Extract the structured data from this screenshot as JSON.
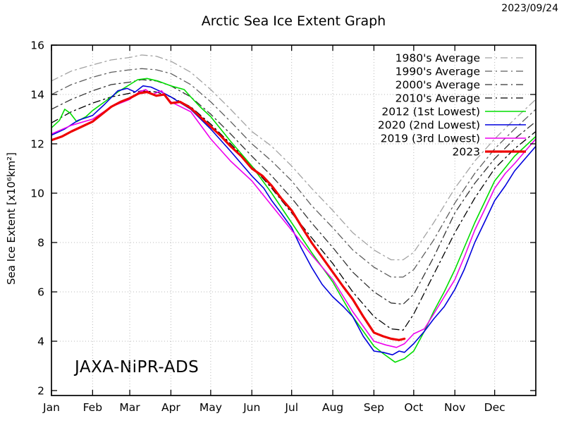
{
  "page": {
    "date_stamp": "2023/09/24",
    "watermark": "JAXA-NiPR-ADS"
  },
  "chart_data": {
    "type": "line",
    "title": "Arctic Sea Ice Extent Graph",
    "xlabel": "",
    "ylabel": "Sea Ice Extent [x10⁶km²]",
    "x_unit": "day_of_year",
    "xlim": [
      0,
      365
    ],
    "ylim": [
      2,
      16
    ],
    "grid": "dotted",
    "legend_position": "top-right-inside",
    "x_ticks": {
      "labels": [
        "Jan",
        "Feb",
        "Mar",
        "Apr",
        "May",
        "Jun",
        "Jul",
        "Aug",
        "Sep",
        "Oct",
        "Nov",
        "Dec"
      ],
      "days": [
        0,
        31,
        59,
        90,
        120,
        151,
        181,
        212,
        243,
        273,
        304,
        334
      ]
    },
    "y_ticks": [
      2,
      4,
      6,
      8,
      10,
      12,
      14,
      16
    ],
    "series": [
      {
        "name": "1980's Average",
        "color": "#a2a2a2",
        "style": "dash-dot",
        "width": 1.3,
        "points": [
          [
            0,
            14.55
          ],
          [
            15,
            14.95
          ],
          [
            31,
            15.2
          ],
          [
            45,
            15.4
          ],
          [
            59,
            15.5
          ],
          [
            68,
            15.6
          ],
          [
            79,
            15.55
          ],
          [
            90,
            15.35
          ],
          [
            105,
            14.9
          ],
          [
            120,
            14.2
          ],
          [
            135,
            13.4
          ],
          [
            151,
            12.5
          ],
          [
            166,
            11.9
          ],
          [
            181,
            11.1
          ],
          [
            196,
            10.2
          ],
          [
            212,
            9.3
          ],
          [
            227,
            8.4
          ],
          [
            243,
            7.7
          ],
          [
            256,
            7.3
          ],
          [
            265,
            7.3
          ],
          [
            273,
            7.6
          ],
          [
            288,
            8.8
          ],
          [
            304,
            10.2
          ],
          [
            319,
            11.3
          ],
          [
            334,
            12.2
          ],
          [
            349,
            13.0
          ],
          [
            365,
            13.8
          ]
        ]
      },
      {
        "name": "1990's Average",
        "color": "#5e5e5e",
        "style": "dash-dot",
        "width": 1.3,
        "points": [
          [
            0,
            14.0
          ],
          [
            15,
            14.4
          ],
          [
            31,
            14.7
          ],
          [
            45,
            14.9
          ],
          [
            59,
            15.0
          ],
          [
            68,
            15.05
          ],
          [
            79,
            15.0
          ],
          [
            90,
            14.85
          ],
          [
            105,
            14.4
          ],
          [
            120,
            13.7
          ],
          [
            135,
            12.9
          ],
          [
            151,
            12.0
          ],
          [
            166,
            11.3
          ],
          [
            181,
            10.5
          ],
          [
            196,
            9.5
          ],
          [
            212,
            8.6
          ],
          [
            227,
            7.7
          ],
          [
            243,
            7.0
          ],
          [
            256,
            6.6
          ],
          [
            265,
            6.6
          ],
          [
            273,
            6.9
          ],
          [
            288,
            8.1
          ],
          [
            304,
            9.6
          ],
          [
            319,
            10.8
          ],
          [
            334,
            11.8
          ],
          [
            349,
            12.6
          ],
          [
            365,
            13.4
          ]
        ]
      },
      {
        "name": "2000's Average",
        "color": "#333333",
        "style": "dash-dot",
        "width": 1.3,
        "points": [
          [
            0,
            13.4
          ],
          [
            15,
            13.8
          ],
          [
            31,
            14.15
          ],
          [
            45,
            14.4
          ],
          [
            59,
            14.5
          ],
          [
            68,
            14.6
          ],
          [
            79,
            14.55
          ],
          [
            90,
            14.35
          ],
          [
            105,
            13.9
          ],
          [
            120,
            13.2
          ],
          [
            135,
            12.4
          ],
          [
            151,
            11.5
          ],
          [
            166,
            10.7
          ],
          [
            181,
            9.8
          ],
          [
            196,
            8.8
          ],
          [
            212,
            7.8
          ],
          [
            227,
            6.8
          ],
          [
            243,
            6.0
          ],
          [
            256,
            5.55
          ],
          [
            265,
            5.5
          ],
          [
            273,
            5.9
          ],
          [
            288,
            7.4
          ],
          [
            304,
            9.2
          ],
          [
            319,
            10.4
          ],
          [
            334,
            11.4
          ],
          [
            349,
            12.2
          ],
          [
            365,
            12.9
          ]
        ]
      },
      {
        "name": "2010's Average",
        "color": "#000000",
        "style": "dash-dot",
        "width": 1.3,
        "points": [
          [
            0,
            12.85
          ],
          [
            15,
            13.3
          ],
          [
            31,
            13.65
          ],
          [
            45,
            13.9
          ],
          [
            59,
            14.05
          ],
          [
            68,
            14.15
          ],
          [
            79,
            14.1
          ],
          [
            90,
            13.9
          ],
          [
            105,
            13.5
          ],
          [
            120,
            12.8
          ],
          [
            135,
            12.0
          ],
          [
            151,
            11.1
          ],
          [
            166,
            10.2
          ],
          [
            181,
            9.2
          ],
          [
            196,
            8.2
          ],
          [
            212,
            7.15
          ],
          [
            227,
            6.0
          ],
          [
            243,
            5.0
          ],
          [
            256,
            4.5
          ],
          [
            265,
            4.45
          ],
          [
            273,
            5.1
          ],
          [
            288,
            6.7
          ],
          [
            304,
            8.4
          ],
          [
            319,
            9.8
          ],
          [
            334,
            11.0
          ],
          [
            349,
            11.8
          ],
          [
            365,
            12.5
          ]
        ]
      },
      {
        "name": "2012 (1st Lowest)",
        "color": "#00dd00",
        "style": "solid",
        "width": 1.6,
        "points": [
          [
            0,
            12.65
          ],
          [
            6,
            12.95
          ],
          [
            10,
            13.4
          ],
          [
            14,
            13.25
          ],
          [
            19,
            12.9
          ],
          [
            26,
            13.1
          ],
          [
            31,
            13.35
          ],
          [
            40,
            13.7
          ],
          [
            50,
            14.1
          ],
          [
            59,
            14.4
          ],
          [
            65,
            14.6
          ],
          [
            72,
            14.65
          ],
          [
            80,
            14.55
          ],
          [
            90,
            14.35
          ],
          [
            100,
            14.2
          ],
          [
            105,
            13.9
          ],
          [
            112,
            13.5
          ],
          [
            120,
            13.1
          ],
          [
            135,
            12.1
          ],
          [
            151,
            11.1
          ],
          [
            166,
            10.0
          ],
          [
            181,
            8.8
          ],
          [
            196,
            7.6
          ],
          [
            212,
            6.4
          ],
          [
            227,
            5.0
          ],
          [
            243,
            3.8
          ],
          [
            250,
            3.5
          ],
          [
            259,
            3.15
          ],
          [
            266,
            3.3
          ],
          [
            273,
            3.6
          ],
          [
            281,
            4.4
          ],
          [
            288,
            5.2
          ],
          [
            296,
            6.0
          ],
          [
            304,
            6.9
          ],
          [
            319,
            8.8
          ],
          [
            334,
            10.5
          ],
          [
            349,
            11.5
          ],
          [
            365,
            12.3
          ]
        ]
      },
      {
        "name": "2020 (2nd Lowest)",
        "color": "#0000dd",
        "style": "solid",
        "width": 1.6,
        "points": [
          [
            0,
            12.35
          ],
          [
            10,
            12.6
          ],
          [
            20,
            12.95
          ],
          [
            31,
            13.15
          ],
          [
            40,
            13.6
          ],
          [
            50,
            14.15
          ],
          [
            57,
            14.25
          ],
          [
            63,
            14.1
          ],
          [
            69,
            14.35
          ],
          [
            75,
            14.3
          ],
          [
            83,
            14.1
          ],
          [
            90,
            13.9
          ],
          [
            105,
            13.4
          ],
          [
            120,
            12.6
          ],
          [
            135,
            11.7
          ],
          [
            151,
            10.7
          ],
          [
            160,
            10.2
          ],
          [
            166,
            9.7
          ],
          [
            173,
            9.2
          ],
          [
            181,
            8.6
          ],
          [
            188,
            7.8
          ],
          [
            196,
            7.0
          ],
          [
            204,
            6.3
          ],
          [
            212,
            5.8
          ],
          [
            220,
            5.4
          ],
          [
            227,
            5.0
          ],
          [
            235,
            4.2
          ],
          [
            243,
            3.6
          ],
          [
            250,
            3.55
          ],
          [
            257,
            3.45
          ],
          [
            262,
            3.6
          ],
          [
            266,
            3.55
          ],
          [
            273,
            3.9
          ],
          [
            281,
            4.4
          ],
          [
            288,
            4.9
          ],
          [
            296,
            5.4
          ],
          [
            304,
            6.1
          ],
          [
            311,
            6.9
          ],
          [
            319,
            8.0
          ],
          [
            327,
            8.9
          ],
          [
            334,
            9.7
          ],
          [
            342,
            10.3
          ],
          [
            349,
            10.9
          ],
          [
            357,
            11.4
          ],
          [
            365,
            11.9
          ]
        ]
      },
      {
        "name": "2019 (3rd Lowest)",
        "color": "#ee00ee",
        "style": "solid",
        "width": 1.6,
        "points": [
          [
            0,
            12.4
          ],
          [
            15,
            12.75
          ],
          [
            31,
            13.0
          ],
          [
            45,
            13.5
          ],
          [
            59,
            13.8
          ],
          [
            66,
            14.1
          ],
          [
            71,
            14.2
          ],
          [
            76,
            14.0
          ],
          [
            83,
            14.15
          ],
          [
            90,
            13.7
          ],
          [
            105,
            13.3
          ],
          [
            120,
            12.2
          ],
          [
            135,
            11.3
          ],
          [
            151,
            10.5
          ],
          [
            166,
            9.5
          ],
          [
            181,
            8.5
          ],
          [
            196,
            7.5
          ],
          [
            212,
            6.5
          ],
          [
            227,
            5.2
          ],
          [
            243,
            4.0
          ],
          [
            252,
            3.85
          ],
          [
            260,
            3.75
          ],
          [
            266,
            3.9
          ],
          [
            273,
            4.3
          ],
          [
            281,
            4.5
          ],
          [
            288,
            5.1
          ],
          [
            296,
            5.8
          ],
          [
            304,
            6.5
          ],
          [
            311,
            7.4
          ],
          [
            319,
            8.5
          ],
          [
            327,
            9.4
          ],
          [
            334,
            10.2
          ],
          [
            342,
            10.8
          ],
          [
            349,
            11.2
          ],
          [
            357,
            11.7
          ],
          [
            365,
            12.2
          ]
        ]
      },
      {
        "name": "2023",
        "color": "#ee0000",
        "style": "solid",
        "width": 3.2,
        "points": [
          [
            0,
            12.15
          ],
          [
            8,
            12.3
          ],
          [
            15,
            12.5
          ],
          [
            23,
            12.7
          ],
          [
            31,
            12.9
          ],
          [
            38,
            13.2
          ],
          [
            45,
            13.5
          ],
          [
            52,
            13.7
          ],
          [
            59,
            13.85
          ],
          [
            66,
            14.05
          ],
          [
            72,
            14.1
          ],
          [
            79,
            13.95
          ],
          [
            85,
            14.0
          ],
          [
            90,
            13.65
          ],
          [
            97,
            13.7
          ],
          [
            105,
            13.45
          ],
          [
            112,
            13.1
          ],
          [
            120,
            12.7
          ],
          [
            128,
            12.3
          ],
          [
            135,
            11.9
          ],
          [
            143,
            11.5
          ],
          [
            151,
            11.0
          ],
          [
            159,
            10.7
          ],
          [
            166,
            10.3
          ],
          [
            173,
            9.8
          ],
          [
            181,
            9.3
          ],
          [
            189,
            8.6
          ],
          [
            196,
            8.0
          ],
          [
            204,
            7.4
          ],
          [
            212,
            6.8
          ],
          [
            220,
            6.2
          ],
          [
            227,
            5.7
          ],
          [
            235,
            5.0
          ],
          [
            243,
            4.35
          ],
          [
            250,
            4.2
          ],
          [
            256,
            4.1
          ],
          [
            262,
            4.05
          ],
          [
            266,
            4.1
          ]
        ]
      }
    ]
  }
}
